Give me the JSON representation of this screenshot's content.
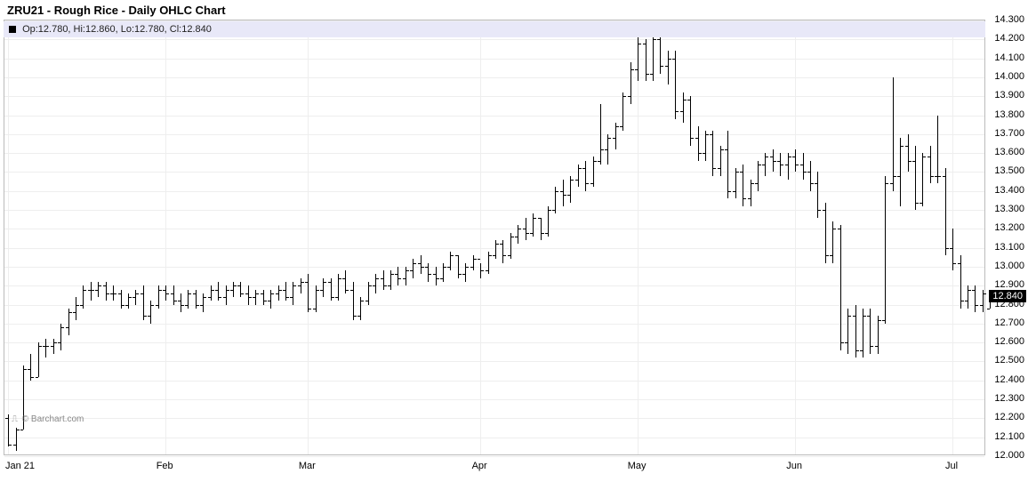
{
  "chart": {
    "type": "ohlc",
    "title": "ZRU21 - Rough Rice - Daily OHLC Chart",
    "ohlc_label": "Op:12.780, Hi:12.860, Lo:12.780, Cl:12.840",
    "watermark": "© Barchart.com",
    "background_color": "#ffffff",
    "grid_color": "#eeeeee",
    "border_color": "#bbbbbb",
    "bar_color": "#000000",
    "label_bg": "#e8e8f8",
    "title_fontsize": 13,
    "label_fontsize": 11,
    "ylim": [
      12.0,
      14.3
    ],
    "ytick_step": 0.1,
    "yticks": [
      12.0,
      12.1,
      12.2,
      12.3,
      12.4,
      12.5,
      12.6,
      12.7,
      12.8,
      12.9,
      13.0,
      13.1,
      13.2,
      13.3,
      13.4,
      13.5,
      13.6,
      13.7,
      13.8,
      13.9,
      14.0,
      14.1,
      14.2,
      14.3
    ],
    "xticks": [
      {
        "label": "Jan 21",
        "index": 0
      },
      {
        "label": "Feb",
        "index": 21
      },
      {
        "label": "Mar",
        "index": 40
      },
      {
        "label": "Apr",
        "index": 63
      },
      {
        "label": "May",
        "index": 84
      },
      {
        "label": "Jun",
        "index": 105
      },
      {
        "label": "Jul",
        "index": 126
      }
    ],
    "last_price": 12.84,
    "last_price_label": "12.840",
    "bar_count": 131,
    "bars": [
      {
        "o": 12.2,
        "h": 12.22,
        "l": 12.05,
        "c": 12.06
      },
      {
        "o": 12.06,
        "h": 12.15,
        "l": 12.03,
        "c": 12.14
      },
      {
        "o": 12.14,
        "h": 12.48,
        "l": 12.14,
        "c": 12.46
      },
      {
        "o": 12.46,
        "h": 12.54,
        "l": 12.4,
        "c": 12.42
      },
      {
        "o": 12.42,
        "h": 12.6,
        "l": 12.42,
        "c": 12.58
      },
      {
        "o": 12.58,
        "h": 12.62,
        "l": 12.52,
        "c": 12.58
      },
      {
        "o": 12.58,
        "h": 12.62,
        "l": 12.54,
        "c": 12.6
      },
      {
        "o": 12.6,
        "h": 12.7,
        "l": 12.56,
        "c": 12.68
      },
      {
        "o": 12.68,
        "h": 12.78,
        "l": 12.64,
        "c": 12.76
      },
      {
        "o": 12.76,
        "h": 12.84,
        "l": 12.72,
        "c": 12.8
      },
      {
        "o": 12.8,
        "h": 12.9,
        "l": 12.78,
        "c": 12.88
      },
      {
        "o": 12.88,
        "h": 12.92,
        "l": 12.82,
        "c": 12.88
      },
      {
        "o": 12.88,
        "h": 12.92,
        "l": 12.84,
        "c": 12.9
      },
      {
        "o": 12.9,
        "h": 12.92,
        "l": 12.82,
        "c": 12.86
      },
      {
        "o": 12.86,
        "h": 12.9,
        "l": 12.82,
        "c": 12.86
      },
      {
        "o": 12.86,
        "h": 12.88,
        "l": 12.78,
        "c": 12.8
      },
      {
        "o": 12.8,
        "h": 12.86,
        "l": 12.78,
        "c": 12.84
      },
      {
        "o": 12.84,
        "h": 12.88,
        "l": 12.8,
        "c": 12.86
      },
      {
        "o": 12.86,
        "h": 12.9,
        "l": 12.72,
        "c": 12.74
      },
      {
        "o": 12.74,
        "h": 12.82,
        "l": 12.7,
        "c": 12.8
      },
      {
        "o": 12.8,
        "h": 12.9,
        "l": 12.78,
        "c": 12.88
      },
      {
        "o": 12.88,
        "h": 12.9,
        "l": 12.82,
        "c": 12.86
      },
      {
        "o": 12.86,
        "h": 12.9,
        "l": 12.8,
        "c": 12.82
      },
      {
        "o": 12.82,
        "h": 12.86,
        "l": 12.76,
        "c": 12.8
      },
      {
        "o": 12.8,
        "h": 12.88,
        "l": 12.78,
        "c": 12.86
      },
      {
        "o": 12.86,
        "h": 12.88,
        "l": 12.78,
        "c": 12.8
      },
      {
        "o": 12.8,
        "h": 12.86,
        "l": 12.76,
        "c": 12.84
      },
      {
        "o": 12.84,
        "h": 12.9,
        "l": 12.82,
        "c": 12.88
      },
      {
        "o": 12.88,
        "h": 12.92,
        "l": 12.82,
        "c": 12.84
      },
      {
        "o": 12.84,
        "h": 12.9,
        "l": 12.8,
        "c": 12.88
      },
      {
        "o": 12.88,
        "h": 12.92,
        "l": 12.84,
        "c": 12.9
      },
      {
        "o": 12.9,
        "h": 12.92,
        "l": 12.84,
        "c": 12.86
      },
      {
        "o": 12.86,
        "h": 12.9,
        "l": 12.8,
        "c": 12.84
      },
      {
        "o": 12.84,
        "h": 12.88,
        "l": 12.8,
        "c": 12.86
      },
      {
        "o": 12.86,
        "h": 12.88,
        "l": 12.8,
        "c": 12.82
      },
      {
        "o": 12.82,
        "h": 12.88,
        "l": 12.78,
        "c": 12.86
      },
      {
        "o": 12.86,
        "h": 12.9,
        "l": 12.82,
        "c": 12.88
      },
      {
        "o": 12.88,
        "h": 12.92,
        "l": 12.82,
        "c": 12.84
      },
      {
        "o": 12.84,
        "h": 12.92,
        "l": 12.8,
        "c": 12.9
      },
      {
        "o": 12.9,
        "h": 12.94,
        "l": 12.86,
        "c": 12.92
      },
      {
        "o": 12.92,
        "h": 12.96,
        "l": 12.76,
        "c": 12.78
      },
      {
        "o": 12.78,
        "h": 12.9,
        "l": 12.76,
        "c": 12.88
      },
      {
        "o": 12.88,
        "h": 12.94,
        "l": 12.84,
        "c": 12.92
      },
      {
        "o": 12.92,
        "h": 12.94,
        "l": 12.82,
        "c": 12.84
      },
      {
        "o": 12.84,
        "h": 12.96,
        "l": 12.82,
        "c": 12.94
      },
      {
        "o": 12.94,
        "h": 12.98,
        "l": 12.86,
        "c": 12.88
      },
      {
        "o": 12.88,
        "h": 12.92,
        "l": 12.72,
        "c": 12.74
      },
      {
        "o": 12.74,
        "h": 12.84,
        "l": 12.72,
        "c": 12.82
      },
      {
        "o": 12.82,
        "h": 12.92,
        "l": 12.8,
        "c": 12.9
      },
      {
        "o": 12.9,
        "h": 12.96,
        "l": 12.86,
        "c": 12.94
      },
      {
        "o": 12.94,
        "h": 12.98,
        "l": 12.88,
        "c": 12.9
      },
      {
        "o": 12.9,
        "h": 12.98,
        "l": 12.88,
        "c": 12.96
      },
      {
        "o": 12.96,
        "h": 13.0,
        "l": 12.9,
        "c": 12.94
      },
      {
        "o": 12.94,
        "h": 13.0,
        "l": 12.9,
        "c": 12.98
      },
      {
        "o": 12.98,
        "h": 13.04,
        "l": 12.94,
        "c": 13.02
      },
      {
        "o": 13.02,
        "h": 13.06,
        "l": 12.96,
        "c": 13.0
      },
      {
        "o": 13.0,
        "h": 13.02,
        "l": 12.92,
        "c": 12.96
      },
      {
        "o": 12.96,
        "h": 13.0,
        "l": 12.9,
        "c": 12.94
      },
      {
        "o": 12.94,
        "h": 13.02,
        "l": 12.92,
        "c": 13.0
      },
      {
        "o": 13.0,
        "h": 13.08,
        "l": 12.98,
        "c": 13.06
      },
      {
        "o": 13.06,
        "h": 13.06,
        "l": 12.94,
        "c": 12.96
      },
      {
        "o": 12.96,
        "h": 13.02,
        "l": 12.92,
        "c": 13.0
      },
      {
        "o": 13.0,
        "h": 13.06,
        "l": 12.98,
        "c": 13.04
      },
      {
        "o": 13.04,
        "h": 13.02,
        "l": 12.94,
        "c": 12.98
      },
      {
        "o": 12.98,
        "h": 13.08,
        "l": 12.96,
        "c": 13.06
      },
      {
        "o": 13.06,
        "h": 13.14,
        "l": 13.04,
        "c": 13.12
      },
      {
        "o": 13.12,
        "h": 13.14,
        "l": 13.02,
        "c": 13.06
      },
      {
        "o": 13.06,
        "h": 13.18,
        "l": 13.04,
        "c": 13.16
      },
      {
        "o": 13.16,
        "h": 13.22,
        "l": 13.12,
        "c": 13.2
      },
      {
        "o": 13.2,
        "h": 13.26,
        "l": 13.14,
        "c": 13.18
      },
      {
        "o": 13.18,
        "h": 13.28,
        "l": 13.16,
        "c": 13.26
      },
      {
        "o": 13.26,
        "h": 13.26,
        "l": 13.14,
        "c": 13.18
      },
      {
        "o": 13.18,
        "h": 13.32,
        "l": 13.16,
        "c": 13.3
      },
      {
        "o": 13.3,
        "h": 13.42,
        "l": 13.28,
        "c": 13.4
      },
      {
        "o": 13.4,
        "h": 13.46,
        "l": 13.32,
        "c": 13.38
      },
      {
        "o": 13.38,
        "h": 13.48,
        "l": 13.34,
        "c": 13.46
      },
      {
        "o": 13.46,
        "h": 13.54,
        "l": 13.42,
        "c": 13.52
      },
      {
        "o": 13.52,
        "h": 13.56,
        "l": 13.4,
        "c": 13.44
      },
      {
        "o": 13.44,
        "h": 13.58,
        "l": 13.42,
        "c": 13.56
      },
      {
        "o": 13.56,
        "h": 13.86,
        "l": 13.54,
        "c": 13.62
      },
      {
        "o": 13.62,
        "h": 13.7,
        "l": 13.54,
        "c": 13.68
      },
      {
        "o": 13.68,
        "h": 13.76,
        "l": 13.62,
        "c": 13.74
      },
      {
        "o": 13.74,
        "h": 13.92,
        "l": 13.72,
        "c": 13.9
      },
      {
        "o": 13.9,
        "h": 14.08,
        "l": 13.86,
        "c": 14.04
      },
      {
        "o": 14.04,
        "h": 14.24,
        "l": 13.98,
        "c": 14.18
      },
      {
        "o": 14.18,
        "h": 14.2,
        "l": 13.98,
        "c": 14.02
      },
      {
        "o": 14.02,
        "h": 14.24,
        "l": 13.98,
        "c": 14.2
      },
      {
        "o": 14.2,
        "h": 14.22,
        "l": 14.02,
        "c": 14.06
      },
      {
        "o": 14.06,
        "h": 14.14,
        "l": 13.96,
        "c": 14.1
      },
      {
        "o": 14.1,
        "h": 14.14,
        "l": 13.78,
        "c": 13.82
      },
      {
        "o": 13.82,
        "h": 13.92,
        "l": 13.76,
        "c": 13.88
      },
      {
        "o": 13.88,
        "h": 13.9,
        "l": 13.64,
        "c": 13.68
      },
      {
        "o": 13.68,
        "h": 13.74,
        "l": 13.56,
        "c": 13.6
      },
      {
        "o": 13.6,
        "h": 13.72,
        "l": 13.56,
        "c": 13.7
      },
      {
        "o": 13.7,
        "h": 13.72,
        "l": 13.48,
        "c": 13.52
      },
      {
        "o": 13.52,
        "h": 13.64,
        "l": 13.48,
        "c": 13.62
      },
      {
        "o": 13.62,
        "h": 13.72,
        "l": 13.36,
        "c": 13.4
      },
      {
        "o": 13.4,
        "h": 13.52,
        "l": 13.36,
        "c": 13.5
      },
      {
        "o": 13.5,
        "h": 13.54,
        "l": 13.32,
        "c": 13.36
      },
      {
        "o": 13.36,
        "h": 13.46,
        "l": 13.32,
        "c": 13.44
      },
      {
        "o": 13.44,
        "h": 13.56,
        "l": 13.4,
        "c": 13.54
      },
      {
        "o": 13.54,
        "h": 13.6,
        "l": 13.48,
        "c": 13.58
      },
      {
        "o": 13.58,
        "h": 13.62,
        "l": 13.5,
        "c": 13.56
      },
      {
        "o": 13.56,
        "h": 13.6,
        "l": 13.48,
        "c": 13.54
      },
      {
        "o": 13.54,
        "h": 13.6,
        "l": 13.46,
        "c": 13.58
      },
      {
        "o": 13.58,
        "h": 13.62,
        "l": 13.5,
        "c": 13.54
      },
      {
        "o": 13.54,
        "h": 13.6,
        "l": 13.46,
        "c": 13.5
      },
      {
        "o": 13.5,
        "h": 13.56,
        "l": 13.4,
        "c": 13.44
      },
      {
        "o": 13.44,
        "h": 13.5,
        "l": 13.26,
        "c": 13.3
      },
      {
        "o": 13.3,
        "h": 13.34,
        "l": 13.02,
        "c": 13.06
      },
      {
        "o": 13.06,
        "h": 13.24,
        "l": 13.02,
        "c": 13.2
      },
      {
        "o": 13.2,
        "h": 13.22,
        "l": 12.56,
        "c": 12.6
      },
      {
        "o": 12.6,
        "h": 12.78,
        "l": 12.54,
        "c": 12.74
      },
      {
        "o": 12.74,
        "h": 12.8,
        "l": 12.52,
        "c": 12.56
      },
      {
        "o": 12.56,
        "h": 12.78,
        "l": 12.52,
        "c": 12.74
      },
      {
        "o": 12.74,
        "h": 12.78,
        "l": 12.54,
        "c": 12.58
      },
      {
        "o": 12.58,
        "h": 12.74,
        "l": 12.54,
        "c": 12.72
      },
      {
        "o": 12.72,
        "h": 13.48,
        "l": 12.7,
        "c": 13.44
      },
      {
        "o": 13.44,
        "h": 14.0,
        "l": 13.4,
        "c": 13.48
      },
      {
        "o": 13.48,
        "h": 13.68,
        "l": 13.32,
        "c": 13.64
      },
      {
        "o": 13.64,
        "h": 13.7,
        "l": 13.5,
        "c": 13.56
      },
      {
        "o": 13.56,
        "h": 13.64,
        "l": 13.3,
        "c": 13.34
      },
      {
        "o": 13.34,
        "h": 13.6,
        "l": 13.32,
        "c": 13.58
      },
      {
        "o": 13.58,
        "h": 13.64,
        "l": 13.44,
        "c": 13.48
      },
      {
        "o": 13.48,
        "h": 13.8,
        "l": 13.44,
        "c": 13.48
      },
      {
        "o": 13.48,
        "h": 13.52,
        "l": 13.06,
        "c": 13.1
      },
      {
        "o": 13.1,
        "h": 13.2,
        "l": 12.98,
        "c": 13.02
      },
      {
        "o": 13.02,
        "h": 13.06,
        "l": 12.78,
        "c": 12.82
      },
      {
        "o": 12.82,
        "h": 12.9,
        "l": 12.78,
        "c": 12.88
      },
      {
        "o": 12.88,
        "h": 12.9,
        "l": 12.76,
        "c": 12.8
      },
      {
        "o": 12.8,
        "h": 12.88,
        "l": 12.76,
        "c": 12.86
      },
      {
        "o": 12.78,
        "h": 12.86,
        "l": 12.78,
        "c": 12.84
      }
    ]
  }
}
